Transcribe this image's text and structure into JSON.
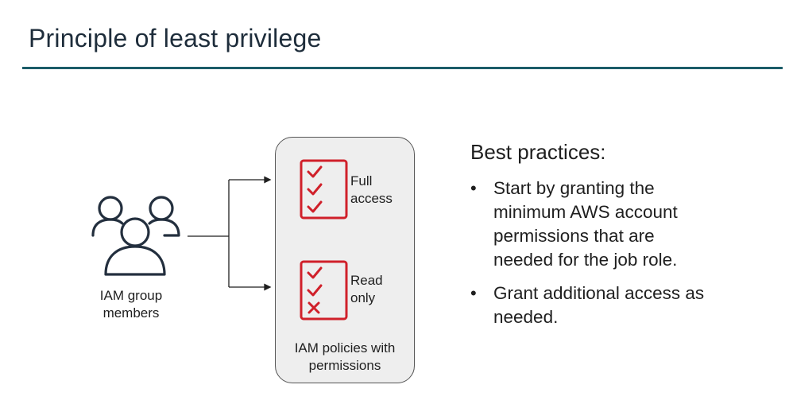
{
  "slide": {
    "title": "Principle of least privilege",
    "accent_color": "#1b5c68",
    "title_color": "#1e2d3b"
  },
  "diagram": {
    "group": {
      "icon": "users-group-icon",
      "label_line1": "IAM group",
      "label_line2": "members"
    },
    "policies": {
      "box_color": "#eeeeee",
      "check_color": "#d0202a",
      "caption_line1": "IAM policies with",
      "caption_line2": "permissions",
      "full": {
        "icon": "checklist-all-checked-icon",
        "label_line1": "Full",
        "label_line2": "access"
      },
      "read": {
        "icon": "checklist-checked-crossed-icon",
        "label_line1": "Read",
        "label_line2": "only"
      }
    }
  },
  "best_practices": {
    "heading": "Best practices:",
    "bullet": "•",
    "items": [
      {
        "lines": [
          "Start by granting the",
          "minimum AWS account",
          "permissions that are",
          "needed for the job role."
        ]
      },
      {
        "lines": [
          "Grant additional access as",
          "needed."
        ]
      }
    ]
  }
}
